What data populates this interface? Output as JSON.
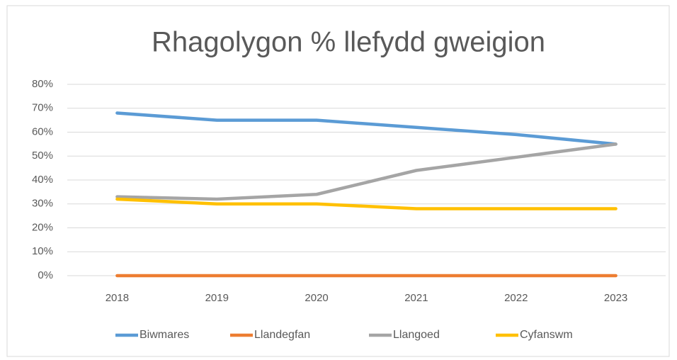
{
  "chart_data": {
    "type": "line",
    "title": "Rhagolygon %  llefydd gweigion",
    "categories": [
      "2018",
      "2019",
      "2020",
      "2021",
      "2022",
      "2023"
    ],
    "series": [
      {
        "name": "Biwmares",
        "color": "#5b9bd5",
        "values": [
          68,
          65,
          65,
          62,
          59,
          55
        ]
      },
      {
        "name": "Llandegfan",
        "color": "#ed7d31",
        "values": [
          0,
          0,
          0,
          0,
          0,
          0
        ]
      },
      {
        "name": "Llangoed",
        "color": "#a5a5a5",
        "values": [
          33,
          32,
          34,
          44,
          49.5,
          55
        ]
      },
      {
        "name": "Cyfanswm",
        "color": "#ffc000",
        "values": [
          32,
          30,
          30,
          28,
          28,
          28
        ]
      }
    ],
    "ylim": [
      0,
      80
    ],
    "yticks": [
      {
        "value": 0,
        "label": "0%"
      },
      {
        "value": 10,
        "label": "10%"
      },
      {
        "value": 20,
        "label": "20%"
      },
      {
        "value": 30,
        "label": "30%"
      },
      {
        "value": 40,
        "label": "40%"
      },
      {
        "value": 50,
        "label": "50%"
      },
      {
        "value": 60,
        "label": "60%"
      },
      {
        "value": 70,
        "label": "70%"
      },
      {
        "value": 80,
        "label": "80%"
      }
    ],
    "grid": true,
    "legend": "bottom"
  }
}
